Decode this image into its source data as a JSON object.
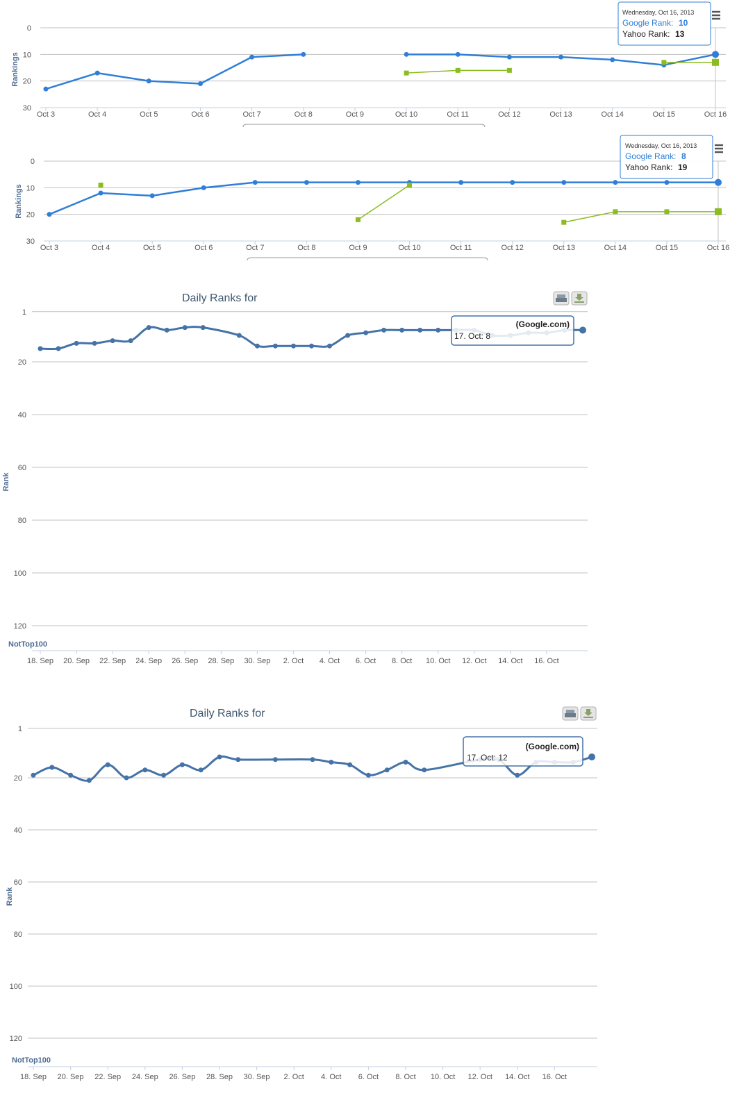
{
  "colors": {
    "google_line": "#2f7ed8",
    "yahoo_line": "#8bbc21",
    "daily_line": "#4572a7",
    "grid": "#c0c0c0",
    "tooltip_border": "#4572a7",
    "axis_title": "#4d6b92"
  },
  "icons": {
    "chart1_menu": "hamburger-menu-icon",
    "chart2_menu": "hamburger-menu-icon",
    "chart3_print": "printer-icon",
    "chart3_download": "download-icon",
    "chart4_print": "printer-icon",
    "chart4_download": "download-icon"
  },
  "chart_data": [
    {
      "type": "line",
      "ylabel": "Rankings",
      "y_reversed": true,
      "ylim": [
        0,
        30
      ],
      "yticks": [
        "0",
        "10",
        "20",
        "30"
      ],
      "categories": [
        "Oct 3",
        "Oct 4",
        "Oct 5",
        "Oct 6",
        "Oct 7",
        "Oct 8",
        "Oct 9",
        "Oct 10",
        "Oct 11",
        "Oct 12",
        "Oct 13",
        "Oct 14",
        "Oct 15",
        "Oct 16"
      ],
      "series": [
        {
          "name": "Google Rank",
          "values": [
            23,
            17,
            20,
            21,
            11,
            10,
            null,
            10,
            10,
            11,
            11,
            12,
            14,
            10
          ]
        },
        {
          "name": "Yahoo Rank",
          "values": [
            null,
            null,
            null,
            null,
            null,
            null,
            null,
            17,
            16,
            16,
            null,
            null,
            13,
            13
          ]
        }
      ],
      "tooltip": {
        "date": "Wednesday, Oct 16, 2013",
        "google_label": "Google Rank:",
        "google_value": "10",
        "yahoo_label": "Yahoo Rank:",
        "yahoo_value": "13"
      }
    },
    {
      "type": "line",
      "ylabel": "Rankings",
      "y_reversed": true,
      "ylim": [
        0,
        30
      ],
      "yticks": [
        "0",
        "10",
        "20",
        "30"
      ],
      "categories": [
        "Oct 3",
        "Oct 4",
        "Oct 5",
        "Oct 6",
        "Oct 7",
        "Oct 8",
        "Oct 9",
        "Oct 10",
        "Oct 11",
        "Oct 12",
        "Oct 13",
        "Oct 14",
        "Oct 15",
        "Oct 16"
      ],
      "series": [
        {
          "name": "Google Rank",
          "values": [
            20,
            12,
            13,
            10,
            8,
            8,
            8,
            8,
            8,
            8,
            8,
            8,
            8,
            8
          ]
        },
        {
          "name": "Yahoo Rank",
          "values": [
            null,
            9,
            null,
            null,
            null,
            null,
            22,
            9,
            null,
            null,
            23,
            19,
            19,
            19
          ]
        }
      ],
      "tooltip": {
        "date": "Wednesday, Oct 16, 2013",
        "google_label": "Google Rank:",
        "google_value": "8",
        "yahoo_label": "Yahoo Rank:",
        "yahoo_value": "19"
      }
    },
    {
      "type": "line",
      "title": "Daily Ranks for",
      "ylabel": "Rank",
      "y_reversed": true,
      "yticks": [
        "1",
        "20",
        "40",
        "60",
        "80",
        "100",
        "120",
        "NotTop100"
      ],
      "xticks": [
        "18. Sep",
        "20. Sep",
        "22. Sep",
        "24. Sep",
        "26. Sep",
        "28. Sep",
        "30. Sep",
        "2. Oct",
        "4. Oct",
        "6. Oct",
        "8. Oct",
        "10. Oct",
        "12. Oct",
        "14. Oct",
        "16. Oct"
      ],
      "series": [
        {
          "name": "Google.com",
          "values": [
            15,
            15,
            13,
            13,
            12,
            12,
            7,
            8,
            7,
            7,
            null,
            10,
            14,
            14,
            14,
            14,
            14,
            10,
            9,
            8,
            8,
            8,
            8,
            8,
            8,
            10,
            10,
            9,
            9,
            8,
            8
          ]
        }
      ],
      "tooltip": {
        "series": "(Google.com)",
        "point": "17. Oct: 8"
      }
    },
    {
      "type": "line",
      "title": "Daily Ranks for",
      "ylabel": "Rank",
      "y_reversed": true,
      "yticks": [
        "1",
        "20",
        "40",
        "60",
        "80",
        "100",
        "120",
        "NotTop100"
      ],
      "xticks": [
        "18. Sep",
        "20. Sep",
        "22. Sep",
        "24. Sep",
        "26. Sep",
        "28. Sep",
        "30. Sep",
        "2. Oct",
        "4. Oct",
        "6. Oct",
        "8. Oct",
        "10. Oct",
        "12. Oct",
        "14. Oct",
        "16. Oct"
      ],
      "series": [
        {
          "name": "Google.com",
          "values": [
            19,
            16,
            19,
            21,
            15,
            20,
            17,
            19,
            15,
            17,
            12,
            13,
            null,
            13,
            null,
            13,
            14,
            15,
            19,
            17,
            14,
            17,
            null,
            null,
            13,
            13,
            19,
            14,
            14,
            14,
            12
          ]
        }
      ],
      "tooltip": {
        "series": "(Google.com)",
        "point": "17. Oct: 12"
      }
    }
  ]
}
